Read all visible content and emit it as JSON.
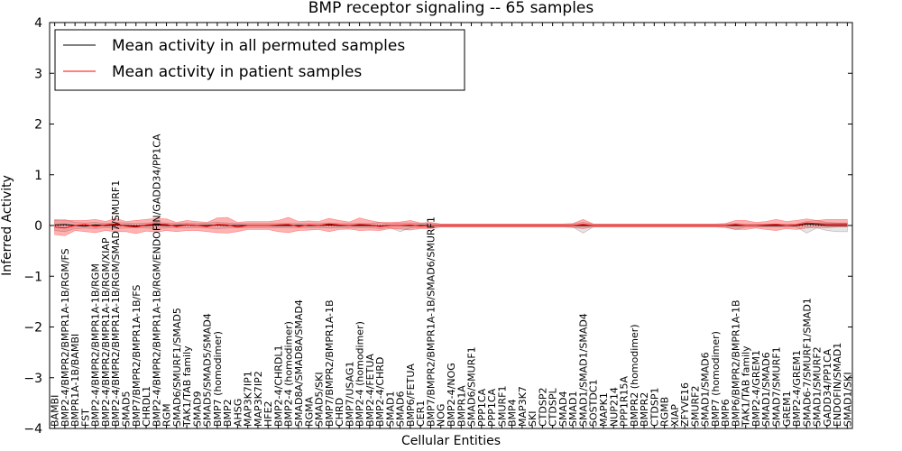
{
  "chart_data": {
    "type": "line",
    "title": "BMP receptor signaling -- 65 samples",
    "xlabel": "Cellular Entities",
    "ylabel": "Inferred Activity",
    "ylim": [
      -4,
      4
    ],
    "yticks": [
      "-4",
      "-3",
      "-2",
      "-1",
      "0",
      "1",
      "2",
      "3",
      "4"
    ],
    "legend_position": "top-left",
    "categories": [
      "BAMBI",
      "BMP2-4/BMPR2/BMPR1A-1B/RGM/FS",
      "BMPR1A-1B/BAMBI",
      "FST",
      "BMP2-4/BMPR2/BMPR1A-1B/RGM",
      "BMP2-4/BMPR2/BMPR1A-1B/RGM/XIAP",
      "BMP2-4/BMPR2/BMPR1A-1B/RGM/SMAD7/SMURF1",
      "SMAD5",
      "BMP7/BMPR2/BMPR1A-1B/FS",
      "CHRDL1",
      "BMP2-4/BMPR2/BMPR1A-1B/RGM/ENDOFIN/GADD34/PP1CA",
      "RGM",
      "SMAD6/SMURF1/SMAD5",
      "TAK1/TAB family",
      "SMAD9",
      "SMAD5/SMAD5/SMAD4",
      "BMP7 (homodimer)",
      "BMP2",
      "AHSG",
      "MAP3K7IP1",
      "MAP3K7IP2",
      "HFE2",
      "BMP2-4/CHRDL1",
      "BMP2-4 (homodimer)",
      "SMAD8A/SMAD8A/SMAD4",
      "RGMA",
      "SMAD5/SKI",
      "BMP7/BMPR2/BMPR1A-1B",
      "CHRD",
      "BMP7/USAG1",
      "BMP2-4 (homodimer)",
      "BMP2-4/FETUA",
      "BMP2-4/CHRD",
      "SMAD1",
      "SMAD6",
      "BMP6/FETUA",
      "CER1",
      "BMP7/BMPR2/BMPR1A-1B/SMAD6/SMURF1",
      "NOG",
      "BMP2-4/NOG",
      "BMPR1A",
      "SMAD6/SMURF1",
      "PPP1CA",
      "PPP1CA",
      "SMURF1",
      "BMP4",
      "MAP3K7",
      "SKI",
      "CTDSP2",
      "CTDSPL",
      "SMAD4",
      "SMAD1",
      "SMAD1/SMAD1/SMAD4",
      "SOSTDC1",
      "MAPK1",
      "NUP214",
      "PPP1R15A",
      "BMPR2 (homodimer)",
      "BMPR2",
      "CTDSP1",
      "RGMB",
      "XIAP",
      "ZFYVE16",
      "SMURF2",
      "SMAD1/SMAD6",
      "BMP7 (homodimer)",
      "BMP6",
      "BMP6/BMPR2/BMPR1A-1B",
      "TAK1/TAB family",
      "BMP2-4/GREM1",
      "SMAD1/SMAD6",
      "SMAD7/SMURF1",
      "GREM1",
      "BMP2-4/GREM1",
      "SMAD6-7/SMURF1/SMAD1",
      "SMAD1/SMURF2",
      "GADD34/PP1CA",
      "ENDOFIN/SMAD1",
      "SMAD1/SKI"
    ],
    "series": [
      {
        "name": "Mean activity in all permuted samples",
        "color": "#000000",
        "values": [
          0.01,
          0.02,
          0.0,
          -0.01,
          0.01,
          0.0,
          0.01,
          0.0,
          -0.01,
          0.0,
          0.01,
          0.0,
          0.0,
          0.01,
          0.0,
          0.0,
          0.01,
          0.0,
          0.0,
          0.0,
          0.0,
          0.0,
          0.0,
          0.0,
          0.0,
          0.0,
          0.0,
          0.01,
          0.0,
          0.0,
          0.0,
          0.0,
          -0.01,
          0.0,
          0.0,
          0.0,
          0.0,
          0.0,
          0.0,
          0.0,
          0.0,
          0.0,
          0.0,
          0.0,
          0.0,
          0.0,
          0.0,
          0.0,
          0.0,
          0.0,
          0.0,
          0.0,
          0.0,
          0.0,
          0.0,
          0.0,
          0.0,
          0.0,
          0.0,
          0.0,
          0.0,
          0.0,
          0.0,
          0.0,
          0.0,
          0.0,
          0.0,
          0.0,
          0.0,
          0.0,
          0.0,
          0.0,
          0.0,
          0.0,
          0.03,
          0.02,
          0.0,
          0.0,
          0.0
        ],
        "band_low": [
          -0.1,
          -0.12,
          -0.06,
          -0.05,
          -0.06,
          -0.04,
          -0.06,
          -0.05,
          -0.04,
          -0.05,
          -0.06,
          -0.05,
          -0.04,
          -0.05,
          -0.04,
          -0.05,
          -0.06,
          -0.05,
          -0.04,
          -0.04,
          -0.04,
          -0.04,
          -0.04,
          -0.04,
          -0.04,
          -0.04,
          -0.04,
          -0.05,
          -0.04,
          -0.04,
          -0.04,
          -0.04,
          -0.06,
          -0.04,
          -0.12,
          -0.05,
          -0.04,
          -0.04,
          -0.03,
          -0.03,
          -0.03,
          -0.03,
          -0.03,
          -0.03,
          -0.03,
          -0.03,
          -0.03,
          -0.03,
          -0.03,
          -0.03,
          -0.03,
          -0.03,
          -0.15,
          -0.03,
          -0.03,
          -0.03,
          -0.03,
          -0.03,
          -0.03,
          -0.03,
          -0.03,
          -0.03,
          -0.03,
          -0.03,
          -0.03,
          -0.03,
          -0.03,
          -0.08,
          -0.03,
          -0.03,
          -0.03,
          -0.03,
          -0.03,
          -0.03,
          -0.15,
          -0.05,
          -0.1,
          -0.12,
          -0.12
        ],
        "band_high": [
          0.1,
          0.12,
          0.06,
          0.05,
          0.06,
          0.04,
          0.06,
          0.05,
          0.04,
          0.05,
          0.06,
          0.05,
          0.04,
          0.05,
          0.04,
          0.05,
          0.06,
          0.05,
          0.04,
          0.04,
          0.04,
          0.04,
          0.04,
          0.04,
          0.04,
          0.04,
          0.04,
          0.05,
          0.04,
          0.04,
          0.04,
          0.04,
          0.06,
          0.04,
          0.05,
          0.05,
          0.04,
          0.04,
          0.03,
          0.03,
          0.03,
          0.03,
          0.03,
          0.03,
          0.03,
          0.03,
          0.03,
          0.03,
          0.03,
          0.03,
          0.03,
          0.03,
          0.06,
          0.03,
          0.03,
          0.03,
          0.03,
          0.03,
          0.03,
          0.03,
          0.03,
          0.03,
          0.03,
          0.03,
          0.03,
          0.03,
          0.03,
          0.04,
          0.03,
          0.03,
          0.03,
          0.03,
          0.03,
          0.03,
          0.08,
          0.1,
          0.06,
          0.05,
          0.05
        ]
      },
      {
        "name": "Mean activity in patient samples",
        "color": "#ff0000",
        "values": [
          -0.03,
          -0.05,
          0.0,
          0.02,
          -0.02,
          0.01,
          0.03,
          -0.01,
          -0.03,
          0.01,
          0.03,
          0.02,
          -0.02,
          0.01,
          0.0,
          -0.02,
          0.02,
          0.01,
          -0.03,
          0.0,
          0.0,
          0.0,
          0.01,
          0.02,
          -0.02,
          0.01,
          0.0,
          0.03,
          0.01,
          0.0,
          0.02,
          0.01,
          -0.02,
          0.0,
          0.0,
          0.01,
          -0.01,
          0.0,
          0.0,
          0.0,
          0.0,
          0.0,
          0.0,
          0.0,
          0.0,
          0.0,
          0.0,
          0.0,
          0.0,
          0.0,
          0.0,
          0.0,
          0.02,
          0.0,
          0.0,
          0.0,
          0.0,
          0.0,
          0.0,
          0.0,
          0.0,
          0.0,
          0.0,
          0.0,
          0.0,
          0.0,
          0.0,
          0.02,
          0.0,
          0.0,
          0.01,
          0.02,
          0.0,
          0.01,
          0.05,
          0.04,
          0.03,
          0.03,
          0.03
        ],
        "band_low": [
          -0.18,
          -0.2,
          -0.1,
          -0.12,
          -0.14,
          -0.1,
          -0.12,
          -0.12,
          -0.16,
          -0.11,
          -0.13,
          -0.1,
          -0.12,
          -0.1,
          -0.1,
          -0.12,
          -0.14,
          -0.15,
          -0.12,
          -0.08,
          -0.08,
          -0.08,
          -0.12,
          -0.14,
          -0.1,
          -0.09,
          -0.08,
          -0.12,
          -0.08,
          -0.07,
          -0.1,
          -0.09,
          -0.1,
          -0.06,
          -0.07,
          -0.09,
          -0.06,
          -0.06,
          -0.03,
          -0.03,
          -0.03,
          -0.03,
          -0.03,
          -0.03,
          -0.03,
          -0.03,
          -0.03,
          -0.03,
          -0.03,
          -0.03,
          -0.03,
          -0.04,
          -0.06,
          -0.03,
          -0.03,
          -0.03,
          -0.03,
          -0.03,
          -0.03,
          -0.03,
          -0.03,
          -0.03,
          -0.03,
          -0.03,
          -0.03,
          -0.03,
          -0.04,
          -0.08,
          -0.08,
          -0.05,
          -0.08,
          -0.1,
          -0.06,
          -0.08,
          -0.05,
          -0.04,
          -0.04,
          -0.03,
          -0.03
        ],
        "band_high": [
          0.12,
          0.1,
          0.1,
          0.1,
          0.12,
          0.08,
          0.14,
          0.08,
          0.1,
          0.12,
          0.14,
          0.13,
          0.06,
          0.1,
          0.08,
          0.06,
          0.15,
          0.16,
          0.06,
          0.08,
          0.08,
          0.08,
          0.1,
          0.16,
          0.08,
          0.09,
          0.08,
          0.14,
          0.1,
          0.07,
          0.15,
          0.1,
          0.06,
          0.06,
          0.07,
          0.1,
          0.05,
          0.06,
          0.03,
          0.03,
          0.03,
          0.03,
          0.03,
          0.03,
          0.03,
          0.03,
          0.03,
          0.03,
          0.03,
          0.03,
          0.03,
          0.04,
          0.12,
          0.03,
          0.03,
          0.03,
          0.03,
          0.03,
          0.03,
          0.03,
          0.03,
          0.03,
          0.03,
          0.03,
          0.03,
          0.03,
          0.04,
          0.1,
          0.1,
          0.06,
          0.08,
          0.12,
          0.08,
          0.1,
          0.13,
          0.1,
          0.12,
          0.12,
          0.12
        ]
      }
    ]
  }
}
